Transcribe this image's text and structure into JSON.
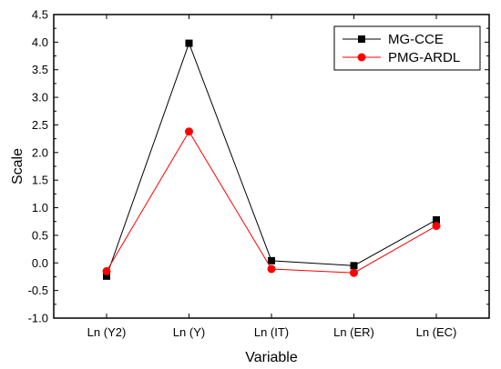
{
  "chart_data": {
    "type": "line",
    "categories": [
      "Ln (Y2)",
      "Ln (Y)",
      "Ln (IT)",
      "Ln (ER)",
      "Ln (EC)"
    ],
    "series": [
      {
        "name": "MG-CCE",
        "values": [
          -0.24,
          3.98,
          0.04,
          -0.05,
          0.78
        ],
        "color": "#000000",
        "marker": "square"
      },
      {
        "name": "PMG-ARDL",
        "values": [
          -0.15,
          2.38,
          -0.11,
          -0.18,
          0.67
        ],
        "color": "#ff0000",
        "marker": "circle"
      }
    ],
    "xlabel": "Variable",
    "ylabel": "Scale",
    "ylim": [
      -1.0,
      4.5
    ],
    "yticks": [
      "-1.0",
      "-0.5",
      "0.0",
      "0.5",
      "1.0",
      "1.5",
      "2.0",
      "2.5",
      "3.0",
      "3.5",
      "4.0",
      "4.5"
    ],
    "grid": false,
    "legend_position": "top-right"
  }
}
